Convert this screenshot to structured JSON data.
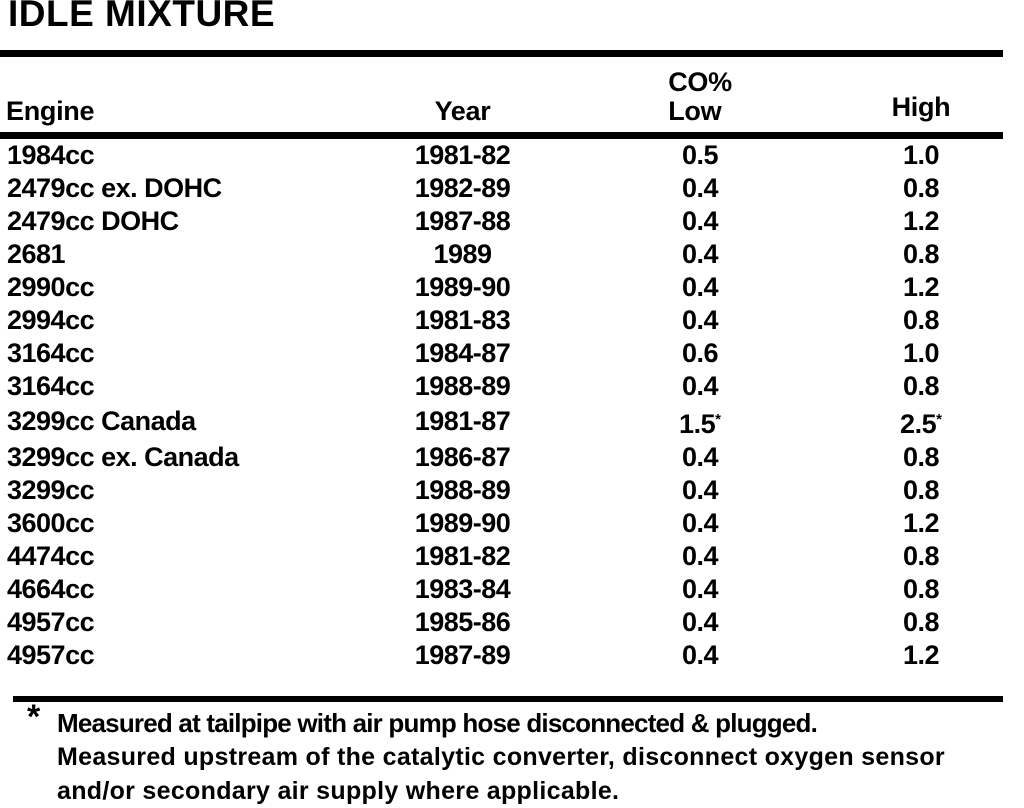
{
  "page": {
    "title": "IDLE MIXTURE",
    "ink_color": "#000000",
    "paper_color": "#ffffff"
  },
  "table": {
    "columns": {
      "engine": "Engine",
      "year": "Year",
      "co_group": "CO%",
      "low": "Low",
      "high": "High"
    },
    "rows": [
      {
        "engine": "1984cc",
        "year": "1981-82",
        "low": "0.5",
        "high": "1.0"
      },
      {
        "engine": "2479cc ex. DOHC",
        "year": "1982-89",
        "low": "0.4",
        "high": "0.8"
      },
      {
        "engine": "2479cc DOHC",
        "year": "1987-88",
        "low": "0.4",
        "high": "1.2"
      },
      {
        "engine": "2681",
        "year": "1989",
        "low": "0.4",
        "high": "0.8"
      },
      {
        "engine": "2990cc",
        "year": "1989-90",
        "low": "0.4",
        "high": "1.2"
      },
      {
        "engine": "2994cc",
        "year": "1981-83",
        "low": "0.4",
        "high": "0.8"
      },
      {
        "engine": "3164cc",
        "year": "1984-87",
        "low": "0.6",
        "high": "1.0"
      },
      {
        "engine": "3164cc",
        "year": "1988-89",
        "low": "0.4",
        "high": "0.8"
      },
      {
        "engine": "3299cc Canada",
        "year": "1981-87",
        "low": "1.5*",
        "high": "2.5*"
      },
      {
        "engine": "3299cc ex. Canada",
        "year": "1986-87",
        "low": "0.4",
        "high": "0.8"
      },
      {
        "engine": "3299cc",
        "year": "1988-89",
        "low": "0.4",
        "high": "0.8"
      },
      {
        "engine": "3600cc",
        "year": "1989-90",
        "low": "0.4",
        "high": "1.2"
      },
      {
        "engine": "4474cc",
        "year": "1981-82",
        "low": "0.4",
        "high": "0.8"
      },
      {
        "engine": "4664cc",
        "year": "1983-84",
        "low": "0.4",
        "high": "0.8"
      },
      {
        "engine": "4957cc",
        "year": "1985-86",
        "low": "0.4",
        "high": "0.8"
      },
      {
        "engine": "4957cc",
        "year": "1987-89",
        "low": "0.4",
        "high": "1.2"
      }
    ]
  },
  "footnote": {
    "marker": "*",
    "line1": "Measured at tailpipe with air pump hose disconnected & plugged.",
    "line2": "Measured upstream of the catalytic converter, disconnect oxygen sensor",
    "line3": "and/or secondary air supply where applicable."
  }
}
